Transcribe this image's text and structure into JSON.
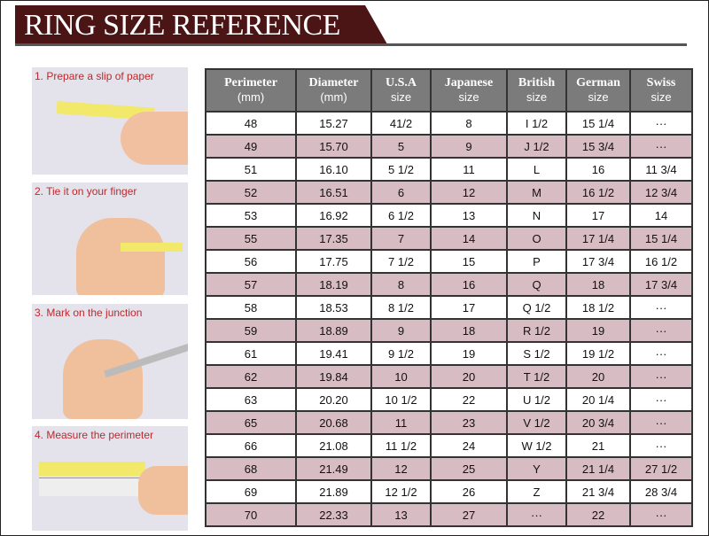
{
  "title": "RING SIZE REFERENCE",
  "steps": [
    "1. Prepare a slip of paper",
    "2. Tie it on your finger",
    "3. Mark on the junction",
    "4. Measure the perimeter"
  ],
  "headers": [
    [
      "Perimeter",
      "(mm)"
    ],
    [
      "Diameter",
      "(mm)"
    ],
    [
      "U.S.A",
      "size"
    ],
    [
      "Japanese",
      "size"
    ],
    [
      "British",
      "size"
    ],
    [
      "German",
      "size"
    ],
    [
      "Swiss",
      "size"
    ]
  ],
  "rows": [
    [
      "48",
      "15.27",
      "41/2",
      "8",
      "I 1/2",
      "15 1/4",
      "···"
    ],
    [
      "49",
      "15.70",
      "5",
      "9",
      "J 1/2",
      "15 3/4",
      "···"
    ],
    [
      "51",
      "16.10",
      "5 1/2",
      "11",
      "L",
      "16",
      "11 3/4"
    ],
    [
      "52",
      "16.51",
      "6",
      "12",
      "M",
      "16 1/2",
      "12 3/4"
    ],
    [
      "53",
      "16.92",
      "6 1/2",
      "13",
      "N",
      "17",
      "14"
    ],
    [
      "55",
      "17.35",
      "7",
      "14",
      "O",
      "17 1/4",
      "15 1/4"
    ],
    [
      "56",
      "17.75",
      "7 1/2",
      "15",
      "P",
      "17 3/4",
      "16 1/2"
    ],
    [
      "57",
      "18.19",
      "8",
      "16",
      "Q",
      "18",
      "17 3/4"
    ],
    [
      "58",
      "18.53",
      "8 1/2",
      "17",
      "Q  1/2",
      "18 1/2",
      "···"
    ],
    [
      "59",
      "18.89",
      "9",
      "18",
      "R 1/2",
      "19",
      "···"
    ],
    [
      "61",
      "19.41",
      "9 1/2",
      "19",
      "S 1/2",
      "19 1/2",
      "···"
    ],
    [
      "62",
      "19.84",
      "10",
      "20",
      "T 1/2",
      "20",
      "···"
    ],
    [
      "63",
      "20.20",
      "10 1/2",
      "22",
      "U 1/2",
      "20 1/4",
      "···"
    ],
    [
      "65",
      "20.68",
      "11",
      "23",
      "V 1/2",
      "20 3/4",
      "···"
    ],
    [
      "66",
      "21.08",
      "11 1/2",
      "24",
      "W 1/2",
      "21",
      "···"
    ],
    [
      "68",
      "21.49",
      "12",
      "25",
      "Y",
      "21 1/4",
      "27 1/2"
    ],
    [
      "69",
      "21.89",
      "12 1/2",
      "26",
      "Z",
      "21 3/4",
      "28 3/4"
    ],
    [
      "70",
      "22.33",
      "13",
      "27",
      "···",
      "22",
      "···"
    ]
  ],
  "colors": {
    "banner": "#4b1516",
    "header": "#7b7b7b",
    "alt_row": "#d8bcc3",
    "step_label": "#c0282c"
  }
}
